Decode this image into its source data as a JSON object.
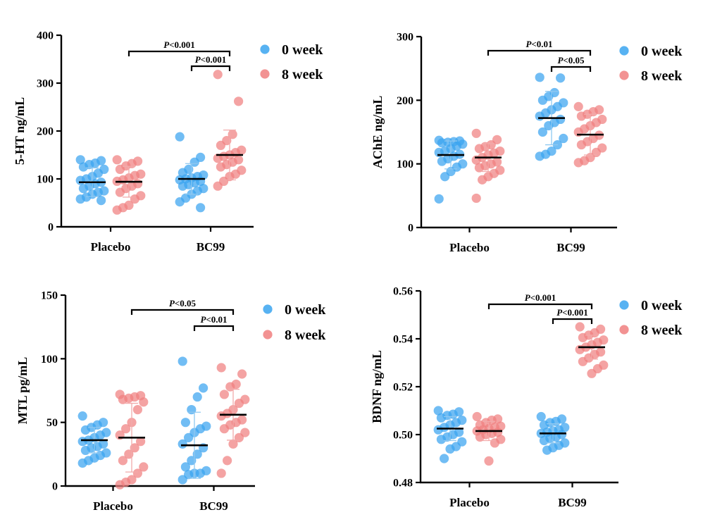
{
  "legend": {
    "items": [
      {
        "label": "0 week",
        "color": "#3aa4f0"
      },
      {
        "label": "8 week",
        "color": "#f07f7f"
      }
    ]
  },
  "colors": {
    "week0_fill": "#3aa4f0",
    "week8_fill": "#f07f7f",
    "week0_sd": "#8fc8f0",
    "week8_sd": "#f2aaaa"
  },
  "chart_data": [
    {
      "type": "scatter",
      "ylabel": "5-HT ng/mL",
      "ylim": [
        0,
        400
      ],
      "yticks": [
        "0",
        "100",
        "200",
        "300",
        "400"
      ],
      "categories": [
        "Placebo",
        "BC99"
      ],
      "groups": [
        {
          "category": "Placebo",
          "series": "0 week",
          "mean": 93,
          "sd": 30,
          "values": [
            140,
            138,
            133,
            130,
            125,
            120,
            112,
            105,
            100,
            97,
            93,
            90,
            85,
            80,
            75,
            72,
            68,
            62,
            58,
            55
          ]
        },
        {
          "category": "Placebo",
          "series": "8 week",
          "mean": 94,
          "sd": 32,
          "values": [
            140,
            137,
            132,
            127,
            120,
            110,
            107,
            102,
            98,
            95,
            90,
            85,
            80,
            72,
            65,
            58,
            45,
            40,
            35
          ]
        },
        {
          "category": "BC99",
          "series": "0 week",
          "mean": 100,
          "sd": 32,
          "values": [
            188,
            145,
            135,
            120,
            113,
            108,
            105,
            102,
            100,
            98,
            95,
            92,
            88,
            85,
            80,
            75,
            68,
            60,
            52,
            40
          ]
        },
        {
          "category": "BC99",
          "series": "8 week",
          "mean": 150,
          "sd": 52,
          "values": [
            318,
            262,
            193,
            180,
            170,
            160,
            155,
            150,
            147,
            143,
            140,
            135,
            130,
            125,
            118,
            110,
            105,
            95,
            85
          ]
        }
      ],
      "comparisons": [
        {
          "label": "P<0.001",
          "from": "Placebo 8 week",
          "to": "BC99 8 week"
        },
        {
          "label": "P<0.001",
          "from": "BC99 0 week",
          "to": "BC99 8 week"
        }
      ]
    },
    {
      "type": "scatter",
      "ylabel": "AChE ng/mL",
      "ylim": [
        0,
        300
      ],
      "yticks": [
        "0",
        "100",
        "200",
        "300"
      ],
      "categories": [
        "Placebo",
        "BC99"
      ],
      "groups": [
        {
          "category": "Placebo",
          "series": "0 week",
          "mean": 114,
          "sd": 22,
          "values": [
            137,
            136,
            135,
            134,
            133,
            131,
            128,
            124,
            120,
            118,
            115,
            112,
            108,
            104,
            100,
            95,
            88,
            80,
            45
          ]
        },
        {
          "category": "Placebo",
          "series": "8 week",
          "mean": 110,
          "sd": 22,
          "values": [
            148,
            138,
            130,
            127,
            124,
            120,
            117,
            114,
            110,
            106,
            103,
            100,
            97,
            94,
            90,
            85,
            80,
            75,
            46
          ]
        },
        {
          "category": "BC99",
          "series": "0 week",
          "mean": 172,
          "sd": 42,
          "values": [
            236,
            235,
            212,
            206,
            200,
            196,
            190,
            185,
            180,
            175,
            170,
            165,
            160,
            150,
            140,
            130,
            120,
            115,
            112
          ]
        },
        {
          "category": "BC99",
          "series": "8 week",
          "mean": 146,
          "sd": 32,
          "values": [
            190,
            185,
            182,
            178,
            175,
            170,
            165,
            160,
            155,
            150,
            145,
            140,
            135,
            130,
            125,
            118,
            110,
            105,
            102
          ]
        }
      ],
      "comparisons": [
        {
          "label": "P<0.01",
          "from": "Placebo 8 week",
          "to": "BC99 8 week"
        },
        {
          "label": "P<0.05",
          "from": "BC99 0 week",
          "to": "BC99 8 week"
        }
      ]
    },
    {
      "type": "scatter",
      "ylabel": "MTL pg/mL",
      "ylim": [
        0,
        150
      ],
      "yticks": [
        "0",
        "50",
        "100",
        "150"
      ],
      "categories": [
        "Placebo",
        "BC99"
      ],
      "groups": [
        {
          "category": "Placebo",
          "series": "0 week",
          "mean": 36,
          "sd": 10,
          "values": [
            55,
            50,
            48,
            46,
            44,
            42,
            40,
            38,
            36,
            35,
            33,
            31,
            30,
            28,
            26,
            24,
            22,
            20,
            18
          ]
        },
        {
          "category": "Placebo",
          "series": "8 week",
          "mean": 38,
          "sd": 27,
          "values": [
            72,
            71,
            70,
            69,
            68,
            66,
            60,
            50,
            45,
            40,
            35,
            30,
            25,
            20,
            15,
            10,
            5,
            3,
            1
          ]
        },
        {
          "category": "BC99",
          "series": "0 week",
          "mean": 32,
          "sd": 26,
          "values": [
            98,
            77,
            70,
            60,
            50,
            47,
            45,
            42,
            38,
            33,
            30,
            25,
            20,
            15,
            12,
            10,
            10,
            9,
            5
          ]
        },
        {
          "category": "BC99",
          "series": "8 week",
          "mean": 56,
          "sd": 20,
          "values": [
            93,
            88,
            80,
            78,
            72,
            68,
            65,
            60,
            57,
            55,
            52,
            50,
            48,
            45,
            42,
            38,
            33,
            20,
            10
          ]
        }
      ],
      "comparisons": [
        {
          "label": "P<0.05",
          "from": "Placebo 8 week",
          "to": "BC99 8 week"
        },
        {
          "label": "P<0.01",
          "from": "BC99 0 week",
          "to": "BC99 8 week"
        }
      ]
    },
    {
      "type": "scatter",
      "ylabel": "BDNF ng/mL",
      "ylim": [
        0.48,
        0.56
      ],
      "yticks": [
        "0.48",
        "0.50",
        "0.52",
        "0.54",
        "0.56"
      ],
      "categories": [
        "Placebo",
        "BC99"
      ],
      "groups": [
        {
          "category": "Placebo",
          "series": "0 week",
          "mean": 0.5025,
          "sd": 0.005,
          "values": [
            0.51,
            0.5095,
            0.5085,
            0.508,
            0.507,
            0.506,
            0.505,
            0.504,
            0.503,
            0.502,
            0.501,
            0.5,
            0.499,
            0.498,
            0.497,
            0.495,
            0.494,
            0.49
          ]
        },
        {
          "category": "Placebo",
          "series": "8 week",
          "mean": 0.5015,
          "sd": 0.004,
          "values": [
            0.5075,
            0.5065,
            0.506,
            0.505,
            0.504,
            0.5035,
            0.503,
            0.5025,
            0.502,
            0.5015,
            0.501,
            0.5005,
            0.5,
            0.499,
            0.498,
            0.4965,
            0.489
          ]
        },
        {
          "category": "BC99",
          "series": "0 week",
          "mean": 0.5005,
          "sd": 0.004,
          "values": [
            0.5075,
            0.5065,
            0.5055,
            0.505,
            0.504,
            0.503,
            0.502,
            0.5015,
            0.501,
            0.5005,
            0.5,
            0.499,
            0.4985,
            0.4975,
            0.4965,
            0.4955,
            0.4945,
            0.4935
          ]
        },
        {
          "category": "BC99",
          "series": "8 week",
          "mean": 0.5365,
          "sd": 0.005,
          "values": [
            0.545,
            0.544,
            0.5425,
            0.5415,
            0.5405,
            0.5395,
            0.5385,
            0.5375,
            0.5365,
            0.5355,
            0.5345,
            0.5335,
            0.532,
            0.5305,
            0.529,
            0.5275,
            0.5255
          ]
        }
      ],
      "comparisons": [
        {
          "label": "P<0.001",
          "from": "Placebo 8 week",
          "to": "BC99 8 week"
        },
        {
          "label": "P<0.001",
          "from": "BC99 0 week",
          "to": "BC99 8 week"
        }
      ]
    }
  ]
}
